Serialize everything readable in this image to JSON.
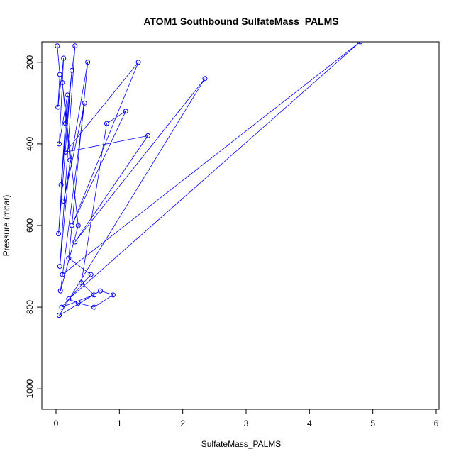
{
  "chart_data": {
    "type": "scatter",
    "title": "ATOM1 Southbound SulfateMass_PALMS",
    "xlabel": "SulfateMass_PALMS",
    "ylabel": "Pressure (mbar)",
    "xlim": [
      0,
      6
    ],
    "ylim": [
      1050,
      150
    ],
    "y_reversed": true,
    "grid": false,
    "legend": "none",
    "series_color": "#0000ff",
    "marker": "open-circle",
    "connected": true,
    "x_ticks": [
      0,
      1,
      2,
      3,
      4,
      5,
      6
    ],
    "y_ticks": [
      200,
      400,
      600,
      800,
      1000
    ],
    "points": [
      {
        "x": 0.02,
        "y": 160
      },
      {
        "x": 0.06,
        "y": 230
      },
      {
        "x": 0.03,
        "y": 310
      },
      {
        "x": 0.12,
        "y": 190
      },
      {
        "x": 0.05,
        "y": 400
      },
      {
        "x": 0.18,
        "y": 280
      },
      {
        "x": 0.08,
        "y": 500
      },
      {
        "x": 0.25,
        "y": 220
      },
      {
        "x": 0.04,
        "y": 620
      },
      {
        "x": 0.15,
        "y": 350
      },
      {
        "x": 0.3,
        "y": 160
      },
      {
        "x": 0.06,
        "y": 700
      },
      {
        "x": 0.22,
        "y": 440
      },
      {
        "x": 0.1,
        "y": 250
      },
      {
        "x": 0.35,
        "y": 600
      },
      {
        "x": 0.07,
        "y": 760
      },
      {
        "x": 0.45,
        "y": 300
      },
      {
        "x": 0.12,
        "y": 540
      },
      {
        "x": 0.5,
        "y": 200
      },
      {
        "x": 0.2,
        "y": 680
      },
      {
        "x": 0.55,
        "y": 720
      },
      {
        "x": 0.09,
        "y": 800
      },
      {
        "x": 0.6,
        "y": 770
      },
      {
        "x": 0.4,
        "y": 740
      },
      {
        "x": 0.8,
        "y": 350
      },
      {
        "x": 1.1,
        "y": 320
      },
      {
        "x": 0.25,
        "y": 600
      },
      {
        "x": 1.3,
        "y": 200
      },
      {
        "x": 0.15,
        "y": 420
      },
      {
        "x": 1.45,
        "y": 380
      },
      {
        "x": 0.3,
        "y": 640
      },
      {
        "x": 2.35,
        "y": 240
      },
      {
        "x": 0.05,
        "y": 820
      },
      {
        "x": 0.7,
        "y": 760
      },
      {
        "x": 0.9,
        "y": 770
      },
      {
        "x": 0.6,
        "y": 800
      },
      {
        "x": 0.35,
        "y": 790
      },
      {
        "x": 0.2,
        "y": 780
      },
      {
        "x": 4.8,
        "y": 150
      },
      {
        "x": 0.1,
        "y": 720
      }
    ]
  }
}
